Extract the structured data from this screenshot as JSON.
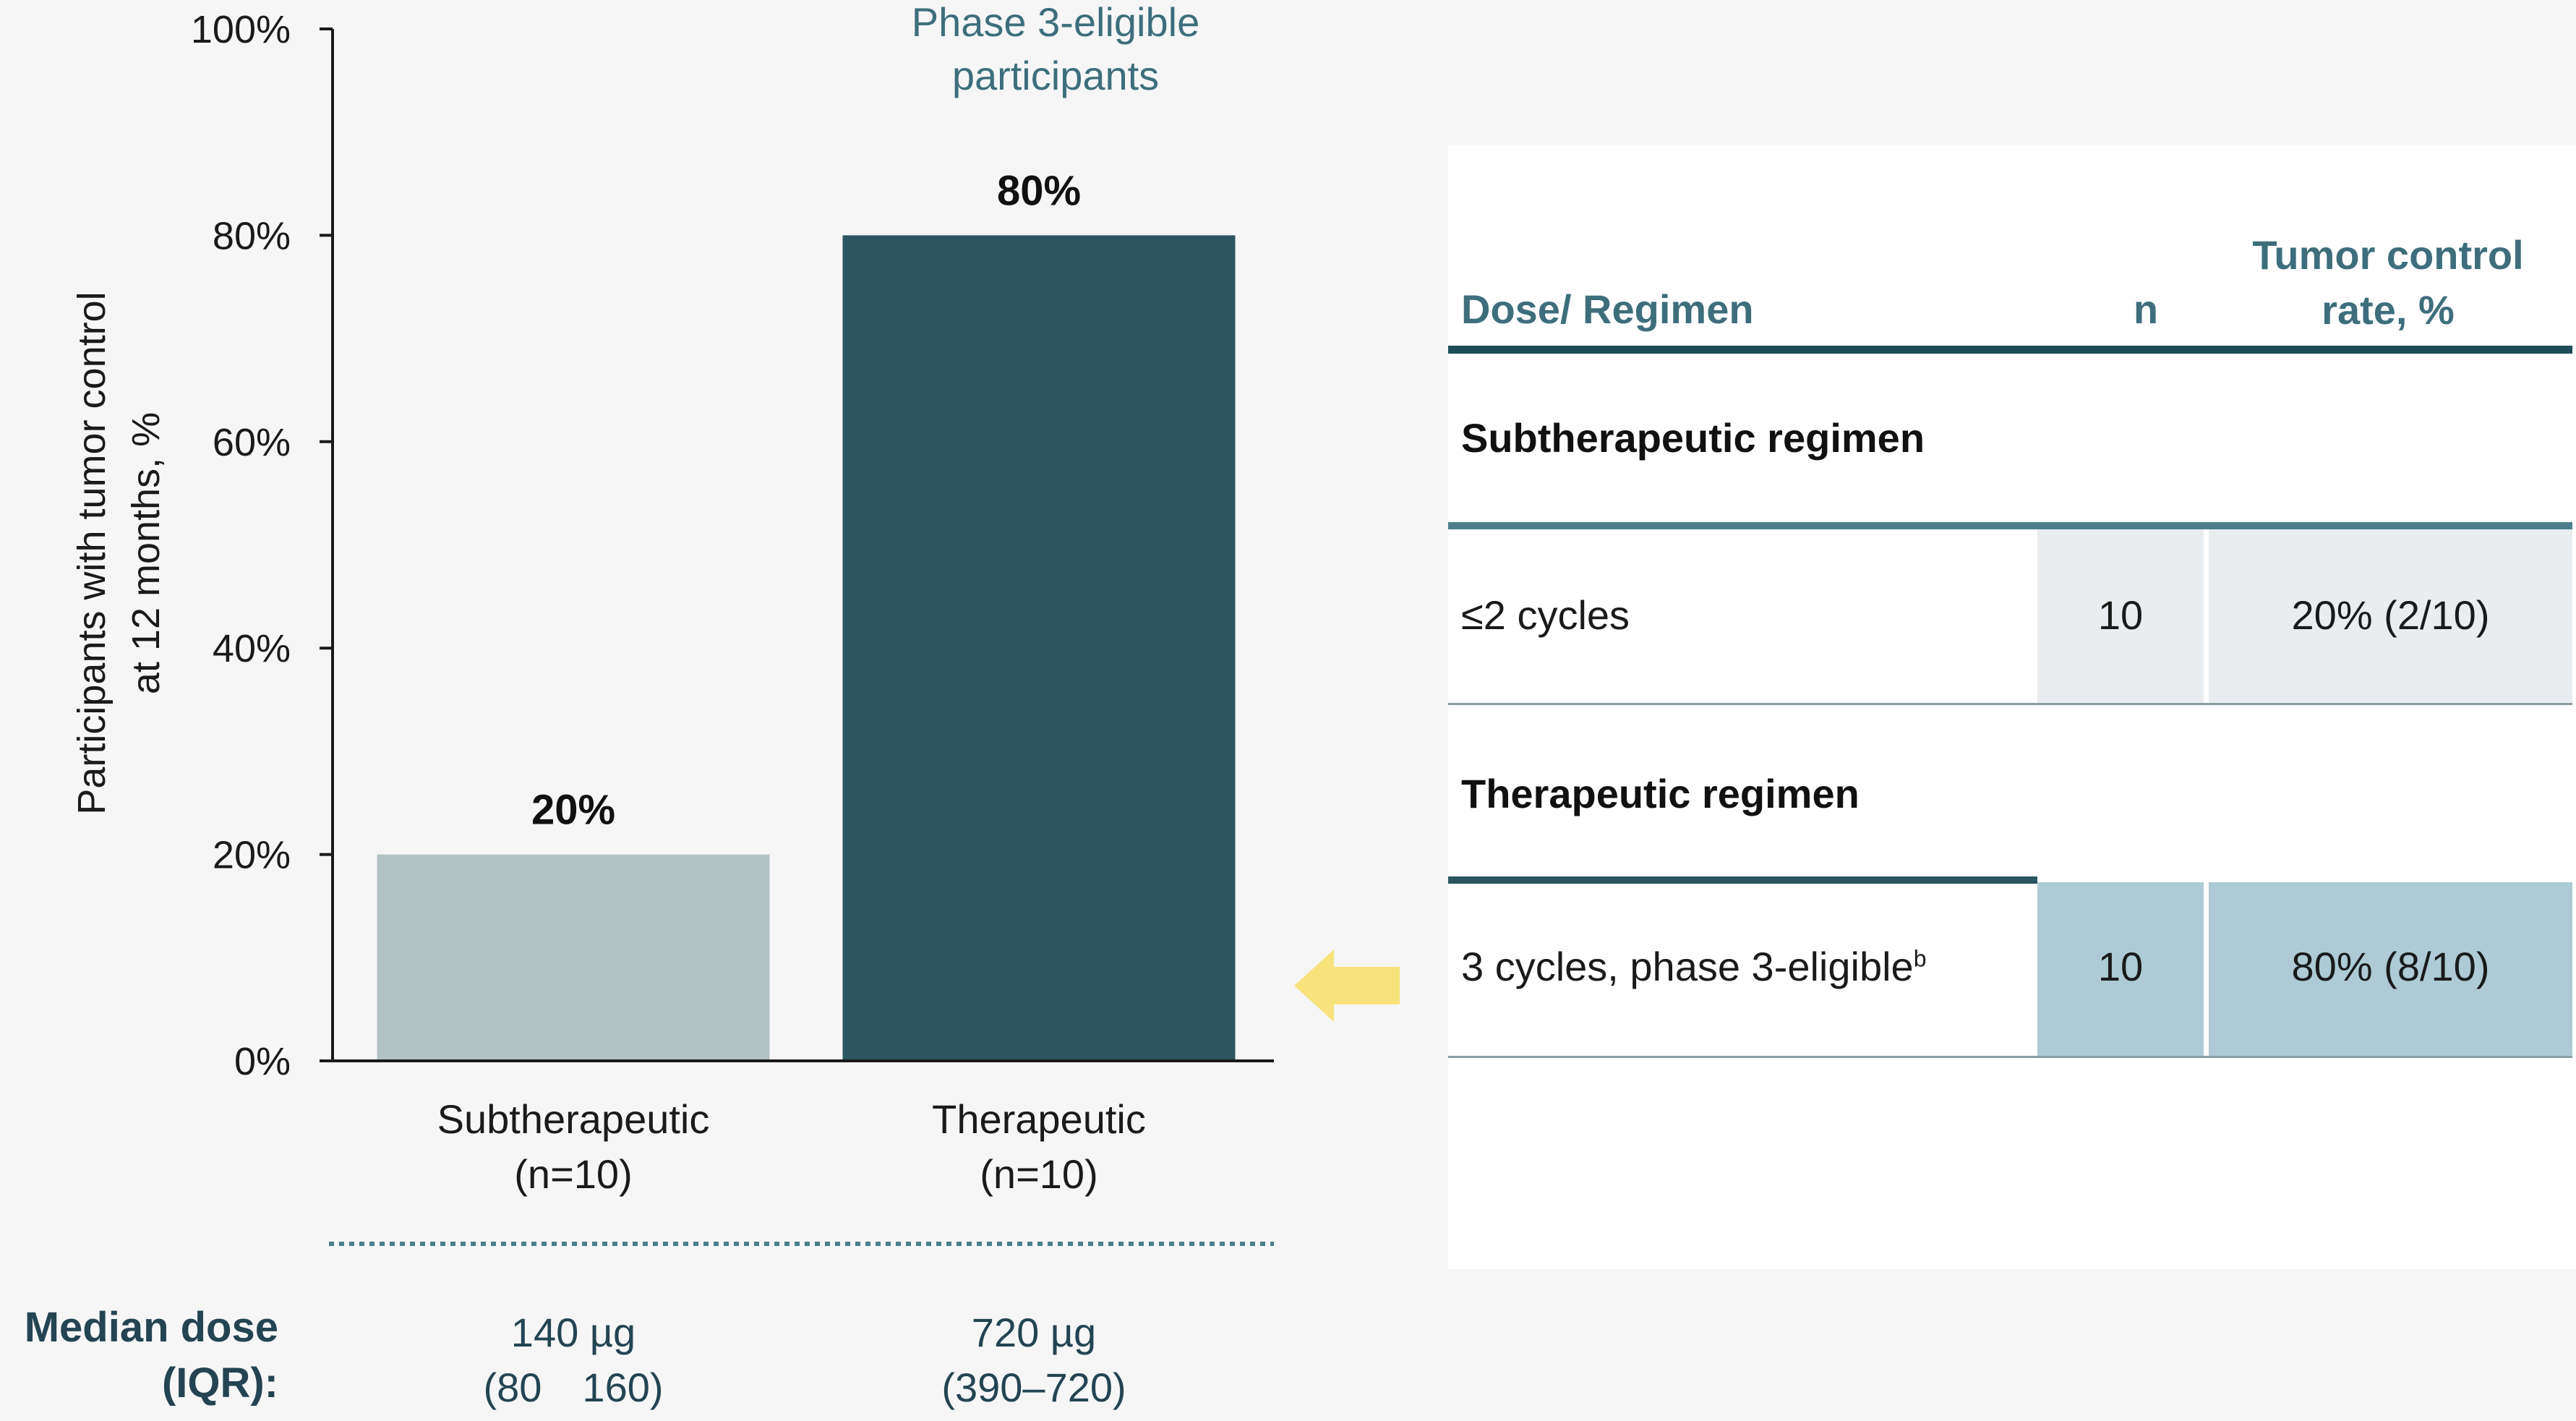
{
  "colors": {
    "subtherapeutic_bar": "#b3c2c5",
    "therapeutic_bar": "#2d5461",
    "header_text": "#3e6e7c",
    "table_rule": "#1e4c57",
    "table_rule_light": "#4c7f8c",
    "cell_light": "#e9edef",
    "cell_dark": "#aecbd5",
    "arrow": "#f8e27c",
    "dose_text": "#244452"
  },
  "chart_data": {
    "type": "bar",
    "categories": [
      "Subtherapeutic\n(n=10)",
      "Therapeutic\n(n=10)"
    ],
    "category_lines": [
      [
        "Subtherapeutic",
        "(n=10)"
      ],
      [
        "Therapeutic",
        "(n=10)"
      ]
    ],
    "values": [
      20,
      80
    ],
    "data_labels": [
      "20%",
      "80%"
    ],
    "ylabel_lines": [
      "Participants with tumor control",
      "at 12 months, %"
    ],
    "ylim": [
      0,
      100
    ],
    "yticks": [
      "0%",
      "20%",
      "40%",
      "60%",
      "80%",
      "100%"
    ],
    "grid": false,
    "annotation_lines": [
      "Phase 3-eligible",
      "participants"
    ]
  },
  "median_dose": {
    "label_lines": [
      "Median dose",
      "(IQR):"
    ],
    "sub_lines": [
      "140 µg",
      "(80 160)"
    ],
    "ther_lines": [
      "720 µg",
      "(390–720)"
    ]
  },
  "table": {
    "headers": {
      "regimen": "Dose/ Regimen",
      "n": "n",
      "rate_lines": [
        "Tumor control",
        "rate, %"
      ]
    },
    "sections": [
      {
        "title": "Subtherapeutic regimen",
        "row": {
          "label": "≤2 cycles",
          "sup": "",
          "n": "10",
          "rate": "20% (2/10)"
        }
      },
      {
        "title": "Therapeutic regimen",
        "row": {
          "label": "3 cycles, phase 3-eligible",
          "sup": "b",
          "n": "10",
          "rate": "80% (8/10)"
        }
      }
    ]
  }
}
